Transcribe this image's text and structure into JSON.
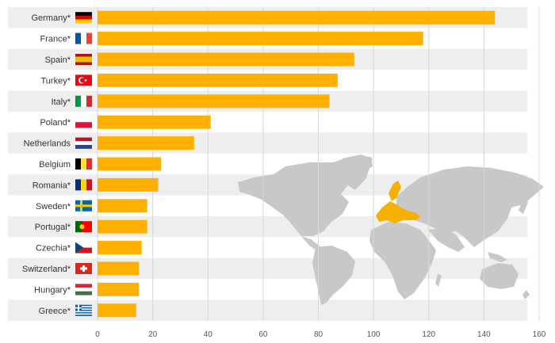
{
  "chart_data": {
    "type": "bar",
    "orientation": "horizontal",
    "title": "",
    "xlabel": "",
    "ylabel": "",
    "categories": [
      "Germany*",
      "France*",
      "Spain*",
      "Turkey*",
      "Italy*",
      "Poland*",
      "Netherlands",
      "Belgium",
      "Romania*",
      "Sweden*",
      "Portugal*",
      "Czechia*",
      "Switzerland*",
      "Hungary*",
      "Greece*"
    ],
    "values": [
      144,
      118,
      93,
      87,
      84,
      41,
      35,
      23,
      22,
      18,
      18,
      16,
      15,
      15,
      14
    ],
    "flags": [
      "germany-flag",
      "france-flag",
      "spain-flag",
      "turkey-flag",
      "italy-flag",
      "poland-flag",
      "netherlands-flag",
      "belgium-flag",
      "romania-flag",
      "sweden-flag",
      "portugal-flag",
      "czechia-flag",
      "switzerland-flag",
      "hungary-flag",
      "greece-flag"
    ],
    "xlim": [
      0,
      160
    ],
    "xticks": [
      0,
      20,
      40,
      60,
      80,
      100,
      120,
      140,
      160
    ],
    "grid": true,
    "bar_color": "#FFB000",
    "row_band_color": "#EEEEEE",
    "background_decoration": "world-map with highlighted european countries"
  }
}
